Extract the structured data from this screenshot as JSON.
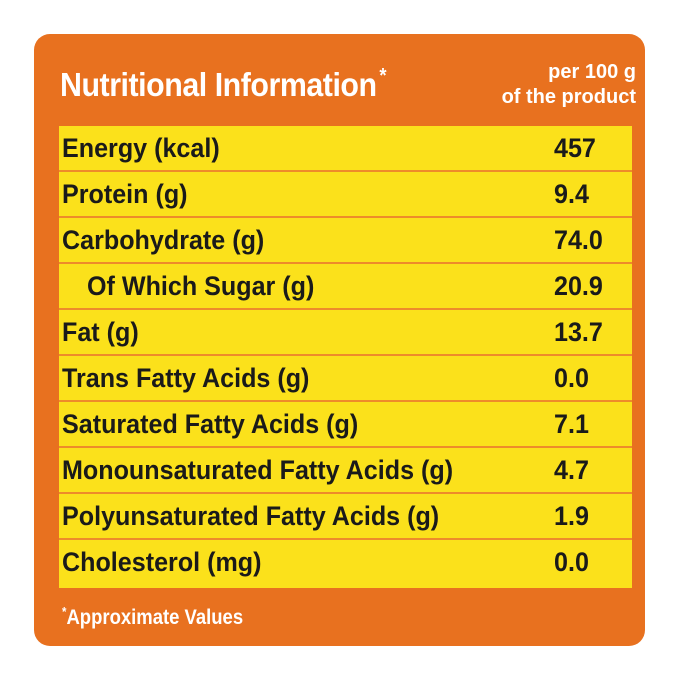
{
  "header": {
    "title": "Nutritional Information",
    "title_marker": "*",
    "per_line1": "per 100 g",
    "per_line2": "of the product"
  },
  "rows": [
    {
      "label": "Energy (kcal)",
      "value": "457"
    },
    {
      "label": "Protein (g)",
      "value": "9.4"
    },
    {
      "label": "Carbohydrate (g)",
      "value": "74.0"
    },
    {
      "label": "Of Which Sugar (g)",
      "value": "20.9"
    },
    {
      "label": "Fat (g)",
      "value": "13.7"
    },
    {
      "label": "Trans Fatty Acids (g)",
      "value": "0.0"
    },
    {
      "label": "Saturated Fatty Acids (g)",
      "value": "7.1"
    },
    {
      "label": "Monounsaturated Fatty Acids (g)",
      "value": "4.7"
    },
    {
      "label": "Polyunsaturated Fatty Acids (g)",
      "value": "1.9"
    },
    {
      "label": "Cholesterol (mg)",
      "value": "0.0"
    }
  ],
  "footnote": {
    "marker": "*",
    "text": "Approximate Values"
  },
  "colors": {
    "panel": "#e8711f",
    "table": "#fbe11b",
    "divider": "#ee8b2a",
    "text_on_panel": "#ffffff",
    "text_on_table": "#1a1a1a"
  }
}
